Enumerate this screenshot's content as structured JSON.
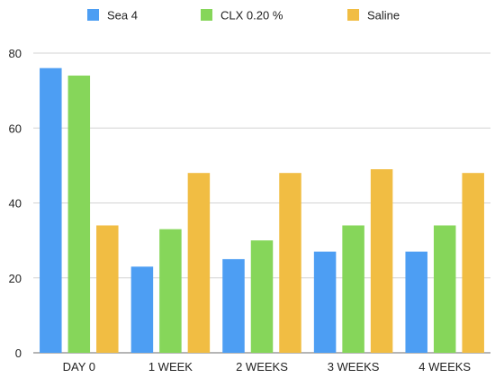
{
  "chart_data": {
    "type": "bar",
    "categories": [
      "DAY 0",
      "1 WEEK",
      "2 WEEKS",
      "3 WEEKS",
      "4 WEEKS"
    ],
    "series": [
      {
        "name": "Sea 4",
        "color": "#4d9ef3",
        "values": [
          76,
          23,
          25,
          27,
          27
        ]
      },
      {
        "name": "CLX 0.20 %",
        "color": "#86d65a",
        "values": [
          74,
          33,
          30,
          34,
          34
        ]
      },
      {
        "name": "Saline",
        "color": "#f1bd43",
        "values": [
          34,
          48,
          48,
          49,
          48
        ]
      }
    ],
    "title": "",
    "xlabel": "",
    "ylabel": "",
    "ylim": [
      0,
      80
    ],
    "yticks": [
      0,
      20,
      40,
      60,
      80
    ],
    "grid": true,
    "legend_position": "top"
  }
}
